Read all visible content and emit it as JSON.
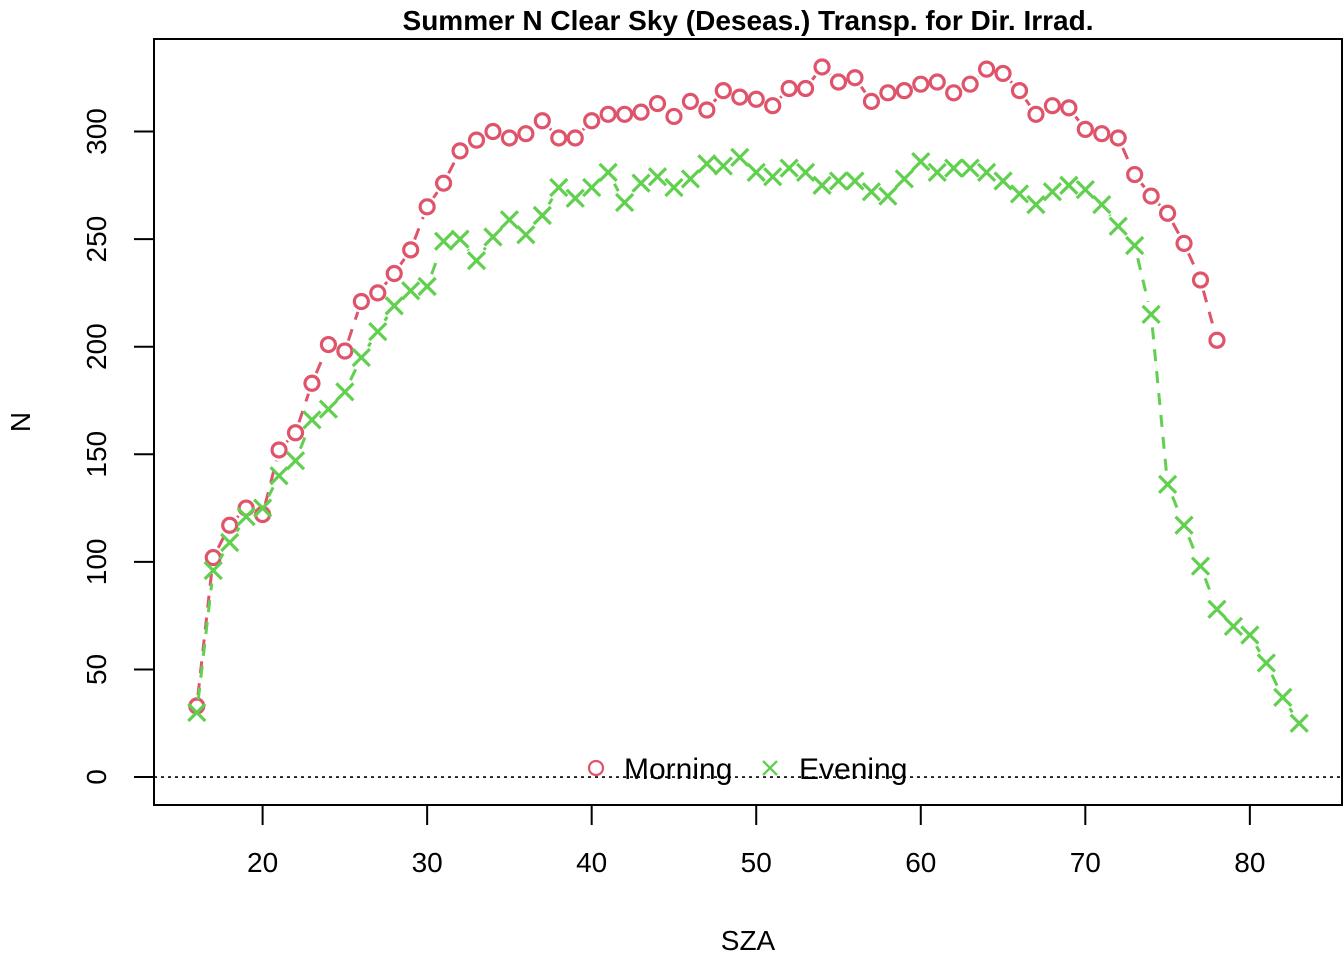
{
  "chart_data": {
    "type": "line",
    "title": "Summer N Clear Sky (Deseas.) Transp. for Dir. Irrad.",
    "xlabel": "SZA",
    "ylabel": "N",
    "xlim": [
      13.4,
      85.6
    ],
    "ylim": [
      -13,
      343
    ],
    "x_ticks": [
      20,
      30,
      40,
      50,
      60,
      70,
      80
    ],
    "y_ticks": [
      0,
      50,
      100,
      150,
      200,
      250,
      300
    ],
    "x_tick_labels": [
      "20",
      "30",
      "40",
      "50",
      "60",
      "70",
      "80"
    ],
    "y_tick_labels": [
      "0",
      "50",
      "100",
      "150",
      "200",
      "250",
      "300"
    ],
    "reference_line": {
      "y": 0,
      "style": "dotted"
    },
    "grid": false,
    "legend_position": "bottom-center",
    "series": [
      {
        "name": "Morning",
        "color": "#DF536B",
        "marker": "circle",
        "x": [
          16,
          17,
          18,
          19,
          20,
          21,
          22,
          23,
          24,
          25,
          26,
          27,
          28,
          29,
          30,
          31,
          32,
          33,
          34,
          35,
          36,
          37,
          38,
          39,
          40,
          41,
          42,
          43,
          44,
          45,
          46,
          47,
          48,
          49,
          50,
          51,
          52,
          53,
          54,
          55,
          56,
          57,
          58,
          59,
          60,
          61,
          62,
          63,
          64,
          65,
          66,
          67,
          68,
          69,
          70,
          71,
          72,
          73,
          74,
          75,
          76,
          77,
          78
        ],
        "y": [
          33,
          102,
          117,
          125,
          122,
          152,
          160,
          183,
          201,
          198,
          221,
          225,
          234,
          245,
          265,
          276,
          291,
          296,
          300,
          297,
          299,
          305,
          297,
          297,
          305,
          308,
          308,
          309,
          313,
          307,
          314,
          310,
          319,
          316,
          315,
          312,
          320,
          320,
          330,
          323,
          325,
          314,
          318,
          319,
          322,
          323,
          318,
          322,
          329,
          327,
          319,
          308,
          312,
          311,
          301,
          299,
          297,
          280,
          270,
          262,
          248,
          231,
          203
        ]
      },
      {
        "name": "Evening",
        "color": "#61D04F",
        "marker": "cross",
        "x": [
          16,
          17,
          18,
          19,
          20,
          21,
          22,
          23,
          24,
          25,
          26,
          27,
          28,
          29,
          30,
          31,
          32,
          33,
          34,
          35,
          36,
          37,
          38,
          39,
          40,
          41,
          42,
          43,
          44,
          45,
          46,
          47,
          48,
          49,
          50,
          51,
          52,
          53,
          54,
          55,
          56,
          57,
          58,
          59,
          60,
          61,
          62,
          63,
          64,
          65,
          66,
          67,
          68,
          69,
          70,
          71,
          72,
          73,
          74,
          75,
          76,
          77,
          78,
          79,
          80,
          81,
          82,
          83
        ],
        "y": [
          30,
          96,
          109,
          121,
          125,
          140,
          147,
          166,
          171,
          179,
          195,
          207,
          219,
          226,
          228,
          249,
          250,
          240,
          251,
          259,
          252,
          261,
          274,
          269,
          274,
          281,
          267,
          276,
          279,
          274,
          278,
          285,
          284,
          288,
          281,
          279,
          283,
          281,
          275,
          277,
          277,
          272,
          270,
          278,
          286,
          281,
          283,
          283,
          281,
          277,
          271,
          266,
          272,
          275,
          273,
          266,
          256,
          247,
          215,
          136,
          117,
          98,
          78,
          70,
          66,
          53,
          37,
          25
        ]
      }
    ]
  }
}
